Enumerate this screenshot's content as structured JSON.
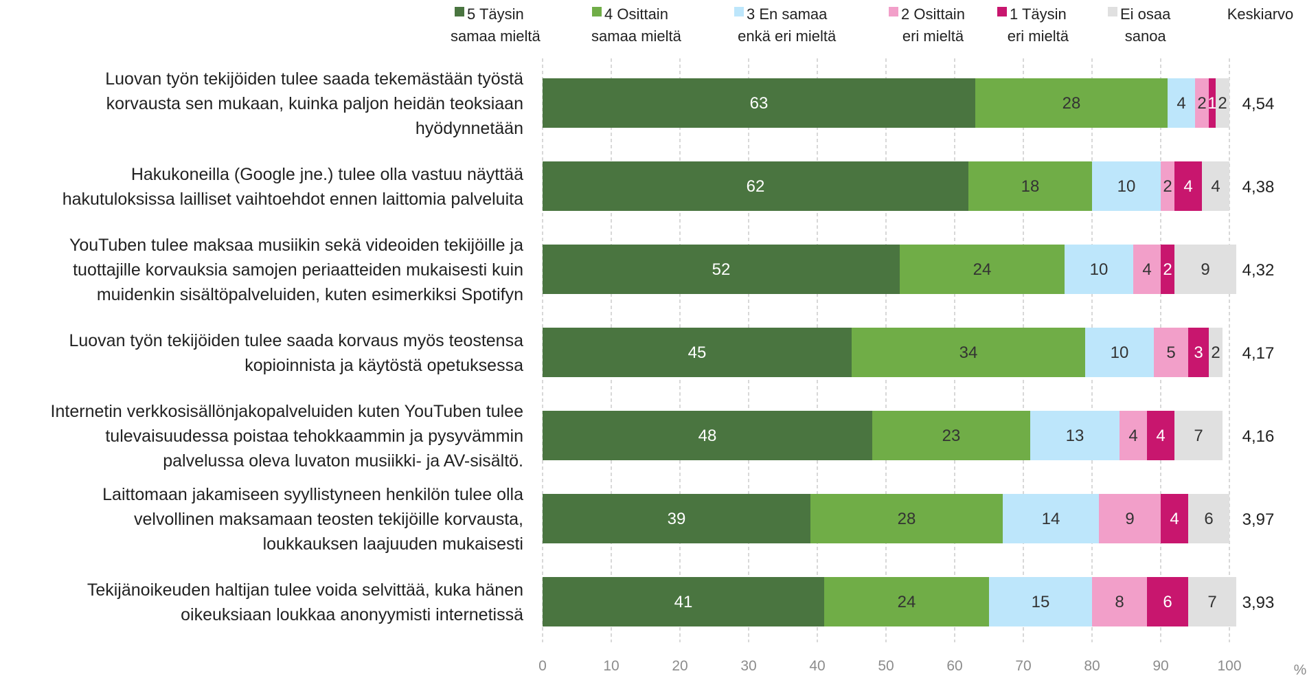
{
  "chart_data": {
    "type": "bar",
    "orientation": "horizontal",
    "stacked": true,
    "categories": [
      [
        "Luovan työn tekijöiden tulee saada tekemästään työstä",
        "korvausta sen mukaan, kuinka paljon heidän teoksiaan",
        "hyödynnetään"
      ],
      [
        "Hakukoneilla (Google jne.) tulee olla vastuu näyttää",
        "hakutuloksissa lailliset vaihtoehdot ennen laittomia palveluita"
      ],
      [
        "YouTuben tulee maksaa musiikin sekä videoiden tekijöille ja",
        "tuottajille korvauksia samojen periaatteiden mukaisesti kuin",
        "muidenkin sisältöpalveluiden, kuten esimerkiksi Spotifyn"
      ],
      [
        "Luovan työn tekijöiden tulee saada korvaus myös teostensa",
        "kopioinnista ja käytöstä opetuksessa"
      ],
      [
        "Internetin verkkosisällönjakopalveluiden kuten YouTuben tulee",
        "tulevaisuudessa poistaa tehokkaammin ja pysyvämmin",
        "palvelussa oleva luvaton musiikki- ja AV-sisältö."
      ],
      [
        "Laittomaan jakamiseen syyllistyneen henkilön tulee olla",
        "velvollinen maksamaan teosten tekijöille korvausta,",
        "loukkauksen laajuuden mukaisesti"
      ],
      [
        "Tekijänoikeuden haltijan tulee voida selvittää, kuka hänen",
        "oikeuksiaan loukkaa anonyymisti internetissä"
      ]
    ],
    "series": [
      {
        "name": [
          "5 Täysin",
          "samaa mieltä"
        ],
        "color": "#4a7540",
        "label_color": "#ffffff",
        "values": [
          63,
          62,
          52,
          45,
          48,
          39,
          41
        ]
      },
      {
        "name": [
          "4 Osittain",
          "samaa mieltä"
        ],
        "color": "#70ad47",
        "label_color": "#333333",
        "values": [
          28,
          18,
          24,
          34,
          23,
          28,
          24
        ]
      },
      {
        "name": [
          "3 En samaa",
          "enkä eri mieltä"
        ],
        "color": "#bde6fb",
        "label_color": "#333333",
        "values": [
          4,
          10,
          10,
          10,
          13,
          14,
          15
        ]
      },
      {
        "name": [
          "2 Osittain",
          "eri mieltä"
        ],
        "color": "#f29fc9",
        "label_color": "#333333",
        "values": [
          2,
          2,
          4,
          5,
          4,
          9,
          8
        ]
      },
      {
        "name": [
          "1 Täysin",
          "eri mieltä"
        ],
        "color": "#c8166e",
        "label_color": "#ffffff",
        "values": [
          1,
          4,
          2,
          3,
          4,
          4,
          6
        ]
      },
      {
        "name": [
          "Ei osaa",
          "sanoa"
        ],
        "color": "#e0e0e0",
        "label_color": "#333333",
        "values": [
          2,
          4,
          9,
          2,
          7,
          6,
          7
        ]
      }
    ],
    "segment_labels": [
      [
        "63",
        "28",
        "4",
        "2",
        "1",
        "2"
      ],
      [
        "62",
        "18",
        "10",
        "2",
        "4",
        "4"
      ],
      [
        "52",
        "24",
        "10",
        "4",
        "2",
        "9"
      ],
      [
        "45",
        "34",
        "10",
        "5",
        "3",
        "2"
      ],
      [
        "48",
        "23",
        "13",
        "4",
        "4",
        "7"
      ],
      [
        "39",
        "28",
        "14",
        "9",
        "4",
        "6"
      ],
      [
        "41",
        "24",
        "15",
        "8",
        "6",
        "7"
      ]
    ],
    "mean_header": "Keskiarvo",
    "means": [
      "4,54",
      "4,38",
      "4,32",
      "4,17",
      "4,16",
      "3,97",
      "3,93"
    ],
    "xlim": [
      0,
      100
    ],
    "xticks": [
      "0",
      "10",
      "20",
      "30",
      "40",
      "50",
      "60",
      "70",
      "80",
      "90",
      "100"
    ],
    "x_unit": "%",
    "grid": "vertical dashed",
    "legend_position": "top"
  }
}
